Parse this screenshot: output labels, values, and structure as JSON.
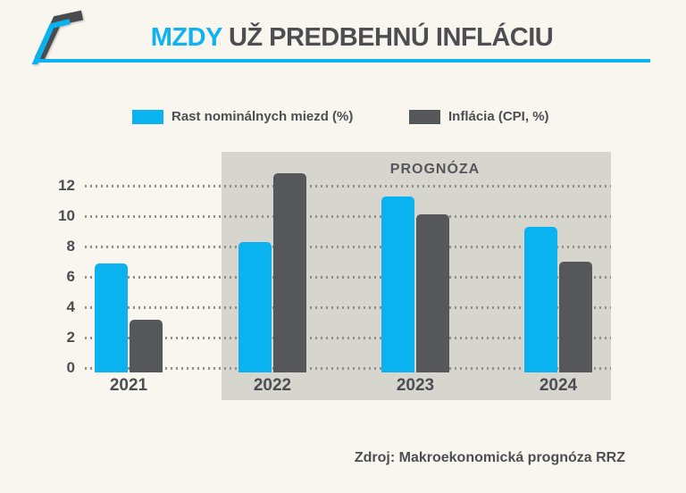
{
  "header": {
    "title_accent": "MZDY",
    "title_rest": " UŽ PREDBEHNÚ INFLÁCIU"
  },
  "legend": {
    "items": [
      {
        "label": "Rast nominálnych miezd (%)",
        "color": "#0AB3F0"
      },
      {
        "label": "Inflácia (CPI, %)",
        "color": "#56575B"
      }
    ]
  },
  "chart_data": {
    "type": "bar",
    "title": "MZDY UŽ PREDBEHNÚ INFLÁCIU",
    "categories": [
      "2021",
      "2022",
      "2023",
      "2024"
    ],
    "series": [
      {
        "name": "Rast nominálnych miezd (%)",
        "key": "wages",
        "color": "#0AB3F0",
        "values": [
          6.9,
          8.3,
          11.3,
          9.3
        ]
      },
      {
        "name": "Inflácia (CPI, %)",
        "key": "inflation",
        "color": "#56575B",
        "values": [
          3.2,
          12.8,
          10.1,
          7.0
        ]
      }
    ],
    "xlabel": "",
    "ylabel": "",
    "ylim": [
      0,
      13
    ],
    "y_ticks": [
      0,
      2,
      4,
      6,
      8,
      10,
      12
    ],
    "grid": "horizontal-dotted",
    "legend_position": "top",
    "annotation": {
      "label": "PROGNÓZA",
      "applies_to_categories": [
        "2022",
        "2023",
        "2024"
      ]
    }
  },
  "footer": {
    "source": "Zdroj: Makroekonomická prognóza RRZ"
  },
  "colors": {
    "background": "#F8F6EE",
    "accent_blue": "#0AB3F0",
    "dark_gray": "#56575B",
    "text": "#4D4E52",
    "forecast_bg": "#D7D6CE",
    "gridline_dot": "#8F8E86",
    "title_rule": "#10B2EF"
  }
}
